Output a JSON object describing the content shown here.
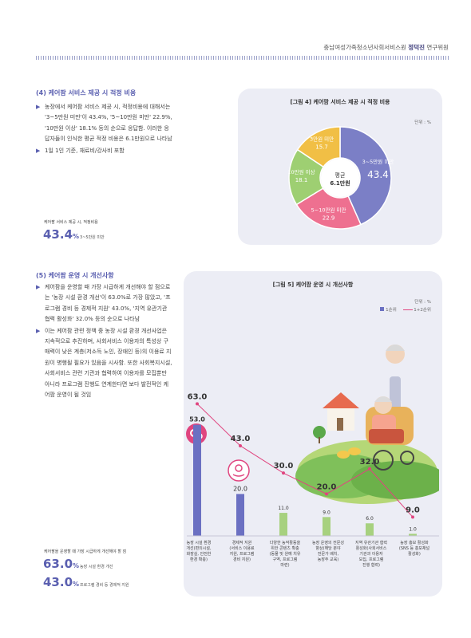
{
  "header": {
    "org": "충남여성가족청소년사회서비스원",
    "name": "정덕진",
    "role": "연구위원"
  },
  "section1": {
    "title": "(4) 케어팜 서비스 제공 시 적정 비용",
    "bullets": [
      "농장에서 케어팜 서비스 제공 시, 적정비용에 대해서는 '3~5만원 미만'이 43.4%, '5~10만원 미만' 22.9%, '10만원 이상' 18.1% 등의 순으로 응답함. 이러한 응답자들이 인식한 평균 적정 비용은 6.1만원으로 나타남",
      "1일 1인 기준, 재료비/강사비 포함"
    ],
    "highlight": {
      "label": "케어팜 서비스 제공 시, 적정비용",
      "value": "43.4",
      "pct": "%",
      "sub": "3~5만원 미만"
    },
    "chart_title": "[그림 4] 케어팜 서비스 제공 시 적정 비용",
    "unit": "단위 : %",
    "center_line1": "평균",
    "center_line2": "6.1만원"
  },
  "section2": {
    "title": "(5) 케어팜 운영 시 개선사항",
    "bullets": [
      "케어팜을 운영할 때 가장 시급하게 개선해야 할 점으로는 '농장 시설 환경 개선'이 63.0%로 가장 많았고, '프로그램 경비 등 경제적 지원' 43.0%, '지역 유관기관 협력 활성화' 32.0% 등의 순으로 나타남",
      "이는 케어팜 관련 정책 중 농장 시설 환경 개선사업은 지속적으로 추진하며, 사회서비스 이용자의 특성상 구매력이 낮은 계층(저소득 노인, 장애인 등)의 이용료 지원이 병행될 필요가 있음을 시사함. 또한 사회복지시설, 사회서비스 관련 기관과 협력하여 이용자를 모집뿐만 아니라 프로그램 진행도 연계한다면 보다 발전적인 케어팜 운영이 될 것임"
    ],
    "highlight_label": "케어팜을 운영할 때 가장 시급하게 개선해야 할 점",
    "highlights": [
      {
        "value": "63.0",
        "pct": "%",
        "sub": "농장 시설 환경 개선"
      },
      {
        "value": "43.0",
        "pct": "%",
        "sub": "프로그램 경비 등 경제적 지원"
      }
    ],
    "chart_title": "[그림 5] 케어팜 운영 시 개선사항",
    "unit": "단위 : %",
    "legend": {
      "bar": "1순위",
      "line": "1+2순위"
    }
  },
  "chart_data": [
    {
      "type": "pie",
      "title": "[그림 4] 케어팜 서비스 제공 시 적정 비용",
      "slices": [
        {
          "label": "3~5만원 미만",
          "value": 43.4,
          "color": "#7b7fc6"
        },
        {
          "label": "5~10만원 미만",
          "value": 22.9,
          "color": "#ee7090"
        },
        {
          "label": "10만원 이상",
          "value": 18.1,
          "color": "#9ecf72"
        },
        {
          "label": "3만원 미만",
          "value": 15.7,
          "color": "#f1bf45"
        }
      ]
    },
    {
      "type": "bar",
      "title": "[그림 5] 케어팜 운영 시 개선사항",
      "categories": [
        "농장 시설 환경 개선(편의시설, 화장실, 안전한 환경 확충)",
        "경제적 지원 (서비스 이용료 지원, 프로그램 경비 지원)",
        "다양한 농작활동을 위한 콘텐츠 확충 (동물 및 원예 치유 구역, 프로그램 마련)",
        "농장 운영의 전문성 향상(해당 분야 전문가 배치, 농장주 교육)",
        "지역 유관기관 협력 활성화(사회서비스 기관과 이용자 모집, 프로그램 진행 협력)",
        "농장 홍보 활성화 (SNS 등 홍보채널 활성화)"
      ],
      "series": [
        {
          "name": "1순위",
          "values": [
            53.0,
            20.0,
            11.0,
            9.0,
            6.0,
            1.0
          ],
          "color": "#6b70c2"
        },
        {
          "name": "1+2순위",
          "values": [
            63.0,
            43.0,
            30.0,
            20.0,
            32.0,
            9.0
          ],
          "color": "#e0457f"
        }
      ],
      "ylim": [
        0,
        70
      ]
    }
  ]
}
